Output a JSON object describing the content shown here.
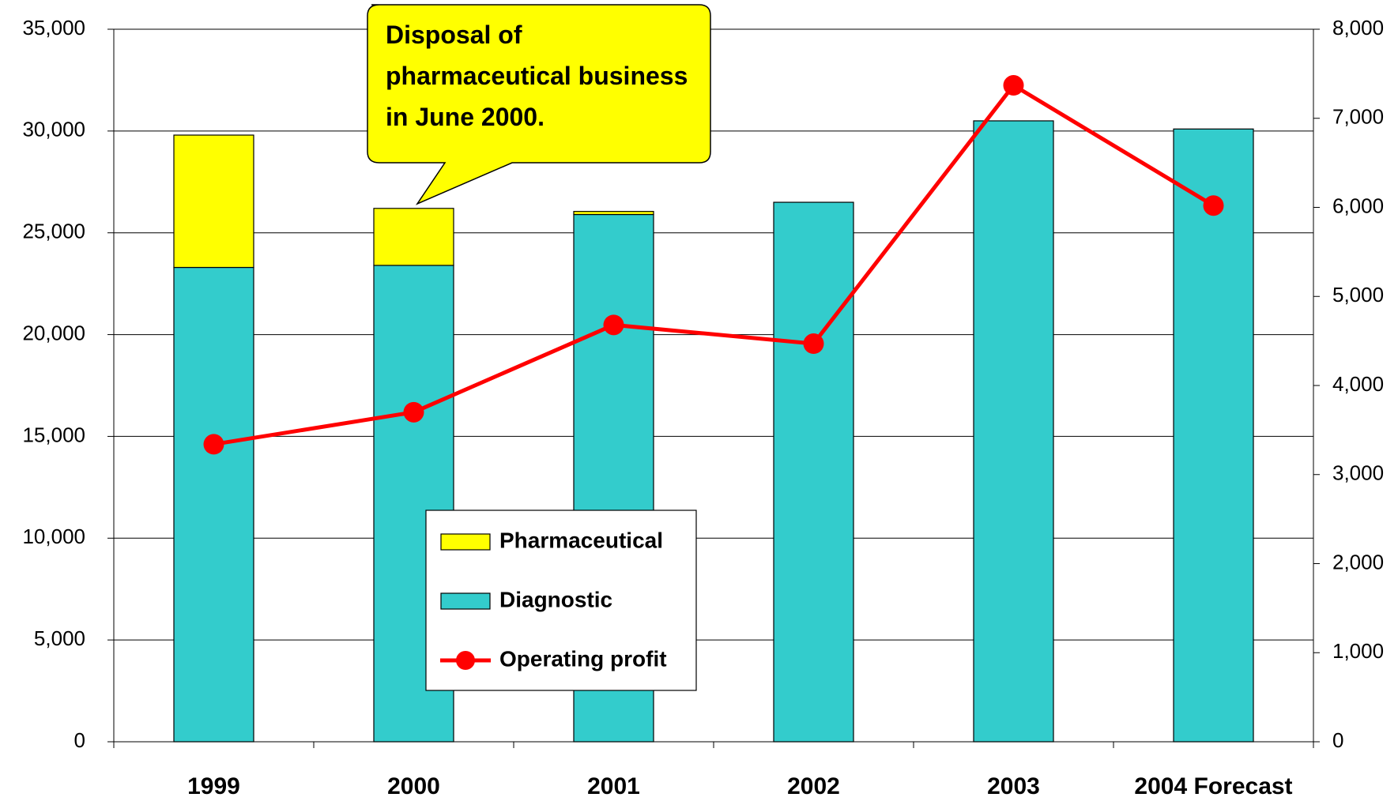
{
  "chart_data": {
    "type": "bar",
    "categories": [
      "1999",
      "2000",
      "2001",
      "2002",
      "2003",
      "2004 Forecast"
    ],
    "series": [
      {
        "name": "Diagnostic",
        "color": "#33cccc",
        "values": [
          23300,
          23400,
          25900,
          26500,
          30500,
          30100
        ]
      },
      {
        "name": "Pharmaceutical",
        "color": "#ffff00",
        "values": [
          6500,
          2800,
          150,
          null,
          null,
          null
        ]
      },
      {
        "name": "Operating profit",
        "color": "#ff0000",
        "type": "line",
        "axis": "y2",
        "values": [
          3340,
          3700,
          4680,
          4470,
          7370,
          6020
        ]
      }
    ],
    "stacked": true,
    "ylim": [
      0,
      35000
    ],
    "yticks": [
      0,
      {
        "value": 5000,
        "label": "5,000"
      },
      {
        "value": 10000,
        "label": "10,000"
      },
      {
        "value": 15000,
        "label": "15,000"
      },
      {
        "value": 20000,
        "label": "20,000"
      },
      {
        "value": 25000,
        "label": "25,000"
      },
      {
        "value": 30000,
        "label": "30,000"
      },
      {
        "value": 35000,
        "label": "35,000"
      }
    ],
    "y2lim": [
      0,
      8000
    ],
    "y2ticks": [
      0,
      {
        "value": 1000,
        "label": "1,000"
      },
      {
        "value": 2000,
        "label": "2,000"
      },
      {
        "value": 3000,
        "label": "3,000"
      },
      {
        "value": 4000,
        "label": "4,000"
      },
      {
        "value": 5000,
        "label": "5,000"
      },
      {
        "value": 6000,
        "label": "6,000"
      },
      {
        "value": 7000,
        "label": "7,000"
      },
      {
        "value": 8000,
        "label": "8,000"
      }
    ],
    "grid": true,
    "annotation": "Disposal of pharmaceutical business in June 2000."
  }
}
